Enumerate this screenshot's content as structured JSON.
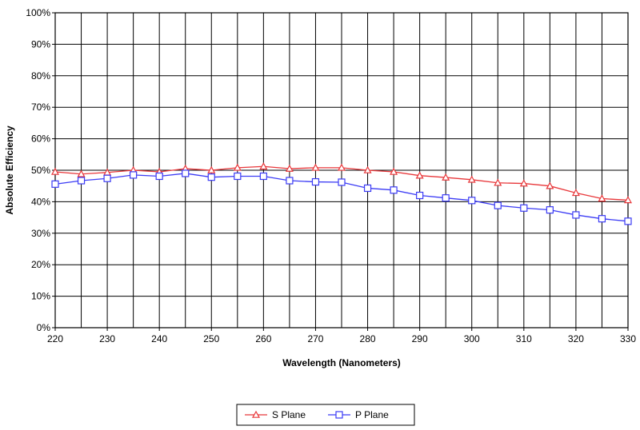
{
  "chart_data": {
    "type": "line",
    "xlabel": "Wavelength (Nanometers)",
    "ylabel": "Absolute Efficiency",
    "xlim": [
      220,
      330
    ],
    "ylim": [
      0,
      100
    ],
    "x_ticks": [
      "220",
      "230",
      "240",
      "250",
      "260",
      "270",
      "280",
      "290",
      "300",
      "310",
      "320",
      "330"
    ],
    "y_ticks": [
      "0%",
      "10%",
      "20%",
      "30%",
      "40%",
      "50%",
      "60%",
      "70%",
      "80%",
      "90%",
      "100%"
    ],
    "grid": true,
    "legend_position": "bottom",
    "x": [
      220,
      225,
      230,
      235,
      240,
      245,
      250,
      255,
      260,
      265,
      270,
      275,
      280,
      285,
      290,
      295,
      300,
      305,
      310,
      315,
      320,
      325,
      330
    ],
    "series": [
      {
        "name": "S Plane",
        "color": "#e8373a",
        "marker": "triangle",
        "values": [
          49.5,
          48.8,
          49.3,
          50.0,
          49.5,
          50.5,
          50.0,
          50.8,
          51.2,
          50.5,
          50.8,
          50.8,
          50.0,
          49.5,
          48.3,
          47.7,
          47.0,
          46.0,
          45.8,
          45.0,
          42.8,
          41.0,
          40.5
        ]
      },
      {
        "name": "P Plane",
        "color": "#3b3bf5",
        "marker": "square",
        "values": [
          45.6,
          46.7,
          47.4,
          48.5,
          48.1,
          49.0,
          47.8,
          48.1,
          48.1,
          46.7,
          46.3,
          46.2,
          44.3,
          43.7,
          42.0,
          41.2,
          40.4,
          38.8,
          38.0,
          37.4,
          35.8,
          34.6,
          33.8
        ]
      }
    ]
  }
}
